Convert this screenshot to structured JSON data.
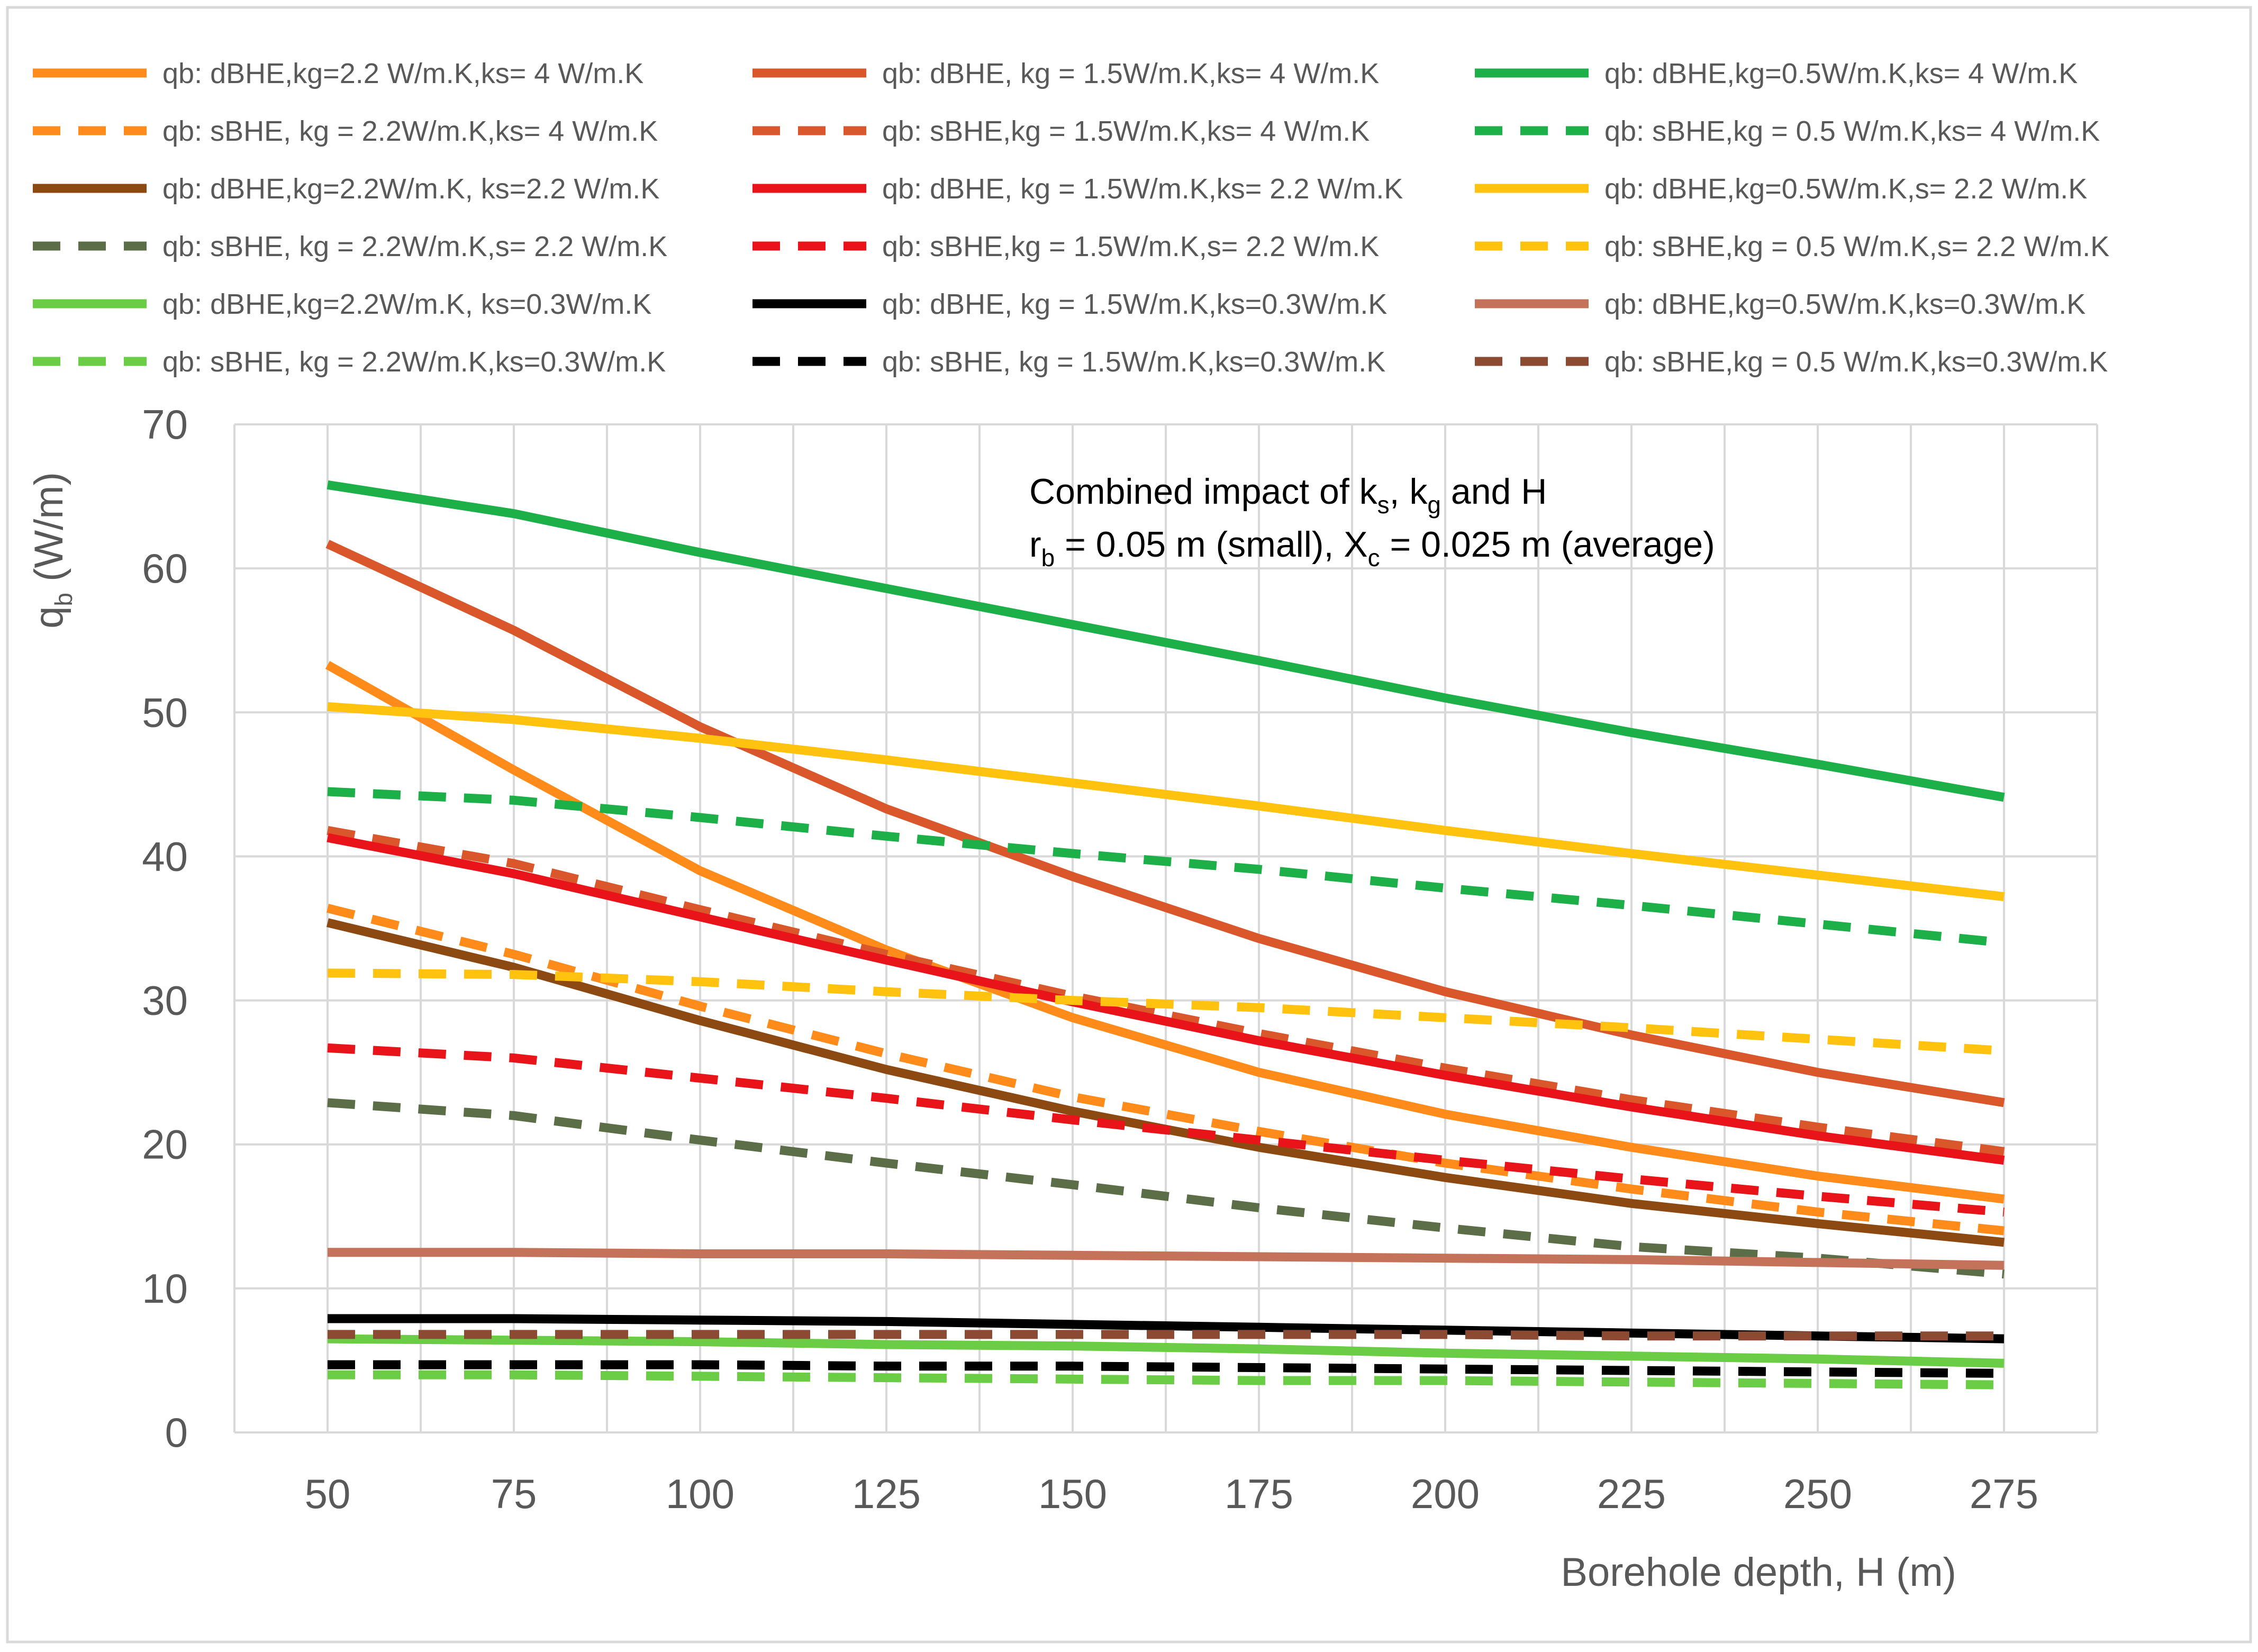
{
  "chart_data": {
    "type": "line",
    "title": "",
    "annotation": {
      "line1": {
        "a": "Combined impact of k",
        "a_sub": "s",
        "b": ", k",
        "b_sub": "g",
        "c": " and H"
      },
      "line2": {
        "a": "r",
        "a_sub": "b",
        "b": " = 0.05 m (small), X",
        "b_sub": "c",
        "c": " = 0.025 m (average)"
      }
    },
    "xlabel": "Borehole depth, H (m)",
    "ylabel": {
      "main": "q",
      "sub": "b",
      "rest": " (W/m)"
    },
    "x": [
      50,
      75,
      100,
      125,
      150,
      175,
      200,
      225,
      250,
      275
    ],
    "xlim": [
      37.5,
      287.5
    ],
    "ylim": [
      0,
      70
    ],
    "xticks": [
      50,
      75,
      100,
      125,
      150,
      175,
      200,
      225,
      250,
      275
    ],
    "yticks": [
      0,
      10,
      20,
      30,
      40,
      50,
      60,
      70
    ],
    "grid": true,
    "legend_position": "top",
    "series": [
      {
        "name": "qb: dBHE,kg=2.2 W/m.K,ks= 4 W/m.K",
        "color": "#FF8C1A",
        "dash": false,
        "values": [
          53.3,
          46.0,
          39.0,
          33.5,
          28.8,
          25.0,
          22.1,
          19.8,
          17.8,
          16.2
        ]
      },
      {
        "name": "qb: dBHE, kg = 1.5W/m.K,ks= 4 W/m.K",
        "color": "#D9572B",
        "dash": false,
        "values": [
          61.7,
          55.7,
          49.0,
          43.3,
          38.6,
          34.3,
          30.6,
          27.6,
          25.0,
          22.9
        ]
      },
      {
        "name": "qb: dBHE,kg=0.5W/m.K,ks= 4 W/m.K",
        "color": "#1DAF48",
        "dash": false,
        "values": [
          65.8,
          63.8,
          61.1,
          58.6,
          56.1,
          53.6,
          51.0,
          48.6,
          46.4,
          44.1
        ]
      },
      {
        "name": "qb: sBHE, kg = 2.2W/m.K,ks= 4 W/m.K",
        "color": "#FF8C1A",
        "dash": true,
        "values": [
          36.4,
          33.2,
          29.6,
          26.3,
          23.3,
          20.9,
          18.7,
          16.9,
          15.3,
          14.0
        ]
      },
      {
        "name": "qb: sBHE,kg = 1.5W/m.K,ks= 4 W/m.K",
        "color": "#D9572B",
        "dash": true,
        "values": [
          41.8,
          39.5,
          36.3,
          33.2,
          30.3,
          27.7,
          25.3,
          23.1,
          21.2,
          19.5
        ]
      },
      {
        "name": "qb: sBHE,kg = 0.5 W/m.K,ks= 4 W/m.K",
        "color": "#1DAF48",
        "dash": true,
        "values": [
          44.5,
          43.9,
          42.7,
          41.4,
          40.2,
          39.1,
          37.8,
          36.6,
          35.3,
          34.0
        ]
      },
      {
        "name": "qb: dBHE,kg=2.2W/m.K, ks=2.2 W/m.K",
        "color": "#8C4A12",
        "dash": false,
        "values": [
          35.4,
          32.3,
          28.6,
          25.2,
          22.3,
          19.8,
          17.7,
          15.9,
          14.5,
          13.2
        ]
      },
      {
        "name": "qb: dBHE, kg = 1.5W/m.K,ks= 2.2 W/m.K",
        "color": "#E8141A",
        "dash": false,
        "values": [
          41.3,
          38.8,
          35.8,
          32.8,
          29.9,
          27.2,
          24.8,
          22.6,
          20.6,
          18.9
        ]
      },
      {
        "name": "qb: dBHE,kg=0.5W/m.K,s= 2.2 W/m.K",
        "color": "#FFC30F",
        "dash": false,
        "values": [
          50.4,
          49.5,
          48.2,
          46.7,
          45.1,
          43.5,
          41.8,
          40.2,
          38.7,
          37.2
        ]
      },
      {
        "name": "qb: sBHE, kg = 2.2W/m.K,s= 2.2 W/m.K",
        "color": "#5B6E48",
        "dash": true,
        "values": [
          22.9,
          22.0,
          20.3,
          18.7,
          17.2,
          15.6,
          14.2,
          12.9,
          12.1,
          11.0
        ]
      },
      {
        "name": "qb: sBHE,kg = 1.5W/m.K,s= 2.2 W/m.K",
        "color": "#E8141A",
        "dash": true,
        "values": [
          26.7,
          26.0,
          24.6,
          23.2,
          21.7,
          20.3,
          18.9,
          17.6,
          16.4,
          15.3
        ]
      },
      {
        "name": "qb: sBHE,kg = 0.5 W/m.K,s= 2.2 W/m.K",
        "color": "#FFC30F",
        "dash": true,
        "values": [
          31.9,
          31.8,
          31.3,
          30.6,
          30.0,
          29.5,
          28.8,
          28.1,
          27.3,
          26.5
        ]
      },
      {
        "name": "qb: dBHE,kg=2.2W/m.K, ks=0.3W/m.K",
        "color": "#6ACD45",
        "dash": false,
        "values": [
          6.5,
          6.4,
          6.3,
          6.1,
          6.0,
          5.8,
          5.5,
          5.3,
          5.1,
          4.8
        ]
      },
      {
        "name": "qb: dBHE, kg = 1.5W/m.K,ks=0.3W/m.K",
        "color": "#000000",
        "dash": false,
        "values": [
          7.9,
          7.9,
          7.8,
          7.7,
          7.5,
          7.3,
          7.1,
          6.9,
          6.7,
          6.5
        ]
      },
      {
        "name": "qb: dBHE,kg=0.5W/m.K,ks=0.3W/m.K",
        "color": "#C4735A",
        "dash": false,
        "values": [
          12.5,
          12.5,
          12.4,
          12.4,
          12.3,
          12.2,
          12.1,
          12.0,
          11.8,
          11.6
        ]
      },
      {
        "name": "qb: sBHE, kg = 2.2W/m.K,ks=0.3W/m.K",
        "color": "#6ACD45",
        "dash": true,
        "values": [
          4.0,
          4.0,
          3.9,
          3.8,
          3.7,
          3.6,
          3.6,
          3.5,
          3.4,
          3.3
        ]
      },
      {
        "name": "qb: sBHE, kg = 1.5W/m.K,ks=0.3W/m.K",
        "color": "#000000",
        "dash": true,
        "values": [
          4.7,
          4.7,
          4.7,
          4.6,
          4.6,
          4.5,
          4.4,
          4.3,
          4.2,
          4.1
        ]
      },
      {
        "name": "qb: sBHE,kg = 0.5 W/m.K,ks=0.3W/m.K",
        "color": "#8C4A32",
        "dash": true,
        "values": [
          6.8,
          6.8,
          6.8,
          6.8,
          6.8,
          6.8,
          6.8,
          6.7,
          6.7,
          6.7
        ]
      }
    ]
  }
}
